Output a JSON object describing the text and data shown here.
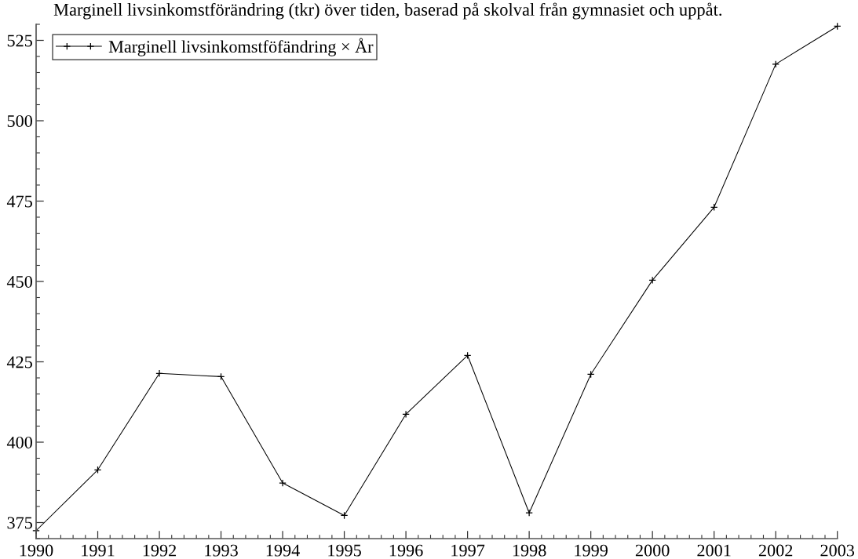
{
  "chart_data": {
    "type": "line",
    "title": "Marginell livsinkomstförändring (tkr) över tiden, baserad på skolval från gymnasiet och uppåt.",
    "x": [
      1990,
      1991,
      1992,
      1993,
      1994,
      1995,
      1996,
      1997,
      1998,
      1999,
      2000,
      2001,
      2002,
      2003
    ],
    "series": [
      {
        "name": "Marginell livsinkomstföfändring × År",
        "color": "#000000",
        "values": [
          372.5,
          391.4,
          421.4,
          420.4,
          387.3,
          377.2,
          408.7,
          427.0,
          378.0,
          421.1,
          450.4,
          473.1,
          517.6,
          529.4
        ]
      }
    ],
    "xlim": [
      1990,
      2003
    ],
    "xticks": [
      1990,
      {
        "value": 1990.2,
        "label": null
      },
      {
        "value": 1990.4,
        "label": null
      },
      {
        "value": 1990.6,
        "label": null
      },
      {
        "value": 1990.8,
        "label": null
      },
      1991,
      {
        "value": 1991.2,
        "label": null
      },
      {
        "value": 1991.4,
        "label": null
      },
      {
        "value": 1991.6,
        "label": null
      },
      {
        "value": 1991.8,
        "label": null
      },
      1992,
      {
        "value": 1992.2,
        "label": null
      },
      {
        "value": 1992.4,
        "label": null
      },
      {
        "value": 1992.6,
        "label": null
      },
      {
        "value": 1992.8,
        "label": null
      },
      1993,
      {
        "value": 1993.2,
        "label": null
      },
      {
        "value": 1993.4,
        "label": null
      },
      {
        "value": 1993.6,
        "label": null
      },
      {
        "value": 1993.8,
        "label": null
      },
      1994,
      {
        "value": 1994.2,
        "label": null
      },
      {
        "value": 1994.4,
        "label": null
      },
      {
        "value": 1994.6,
        "label": null
      },
      {
        "value": 1994.8,
        "label": null
      },
      1995,
      {
        "value": 1995.2,
        "label": null
      },
      {
        "value": 1995.4,
        "label": null
      },
      {
        "value": 1995.6,
        "label": null
      },
      {
        "value": 1995.8,
        "label": null
      },
      1996,
      {
        "value": 1996.2,
        "label": null
      },
      {
        "value": 1996.4,
        "label": null
      },
      {
        "value": 1996.6,
        "label": null
      },
      {
        "value": 1996.8,
        "label": null
      },
      1997,
      {
        "value": 1997.2,
        "label": null
      },
      {
        "value": 1997.4,
        "label": null
      },
      {
        "value": 1997.6,
        "label": null
      },
      {
        "value": 1997.8,
        "label": null
      },
      1998,
      {
        "value": 1998.2,
        "label": null
      },
      {
        "value": 1998.4,
        "label": null
      },
      {
        "value": 1998.6,
        "label": null
      },
      {
        "value": 1998.8,
        "label": null
      },
      1999,
      {
        "value": 1999.2,
        "label": null
      },
      {
        "value": 1999.4,
        "label": null
      },
      {
        "value": 1999.6,
        "label": null
      },
      {
        "value": 1999.8,
        "label": null
      },
      2000,
      {
        "value": 2000.2,
        "label": null
      },
      {
        "value": 2000.4,
        "label": null
      },
      {
        "value": 2000.6,
        "label": null
      },
      {
        "value": 2000.8,
        "label": null
      },
      2001,
      {
        "value": 2001.2,
        "label": null
      },
      {
        "value": 2001.4,
        "label": null
      },
      {
        "value": 2001.6,
        "label": null
      },
      {
        "value": 2001.8,
        "label": null
      },
      2002,
      {
        "value": 2002.2,
        "label": null
      },
      {
        "value": 2002.4,
        "label": null
      },
      {
        "value": 2002.6,
        "label": null
      },
      {
        "value": 2002.8,
        "label": null
      },
      2003
    ],
    "ylim": [
      370,
      530
    ],
    "yticks": [
      {
        "value": 370,
        "label": null
      },
      375,
      {
        "value": 380,
        "label": null
      },
      {
        "value": 385,
        "label": null
      },
      {
        "value": 390,
        "label": null
      },
      {
        "value": 395,
        "label": null
      },
      400,
      {
        "value": 405,
        "label": null
      },
      {
        "value": 410,
        "label": null
      },
      {
        "value": 415,
        "label": null
      },
      {
        "value": 420,
        "label": null
      },
      425,
      {
        "value": 430,
        "label": null
      },
      {
        "value": 435,
        "label": null
      },
      {
        "value": 440,
        "label": null
      },
      {
        "value": 445,
        "label": null
      },
      450,
      {
        "value": 455,
        "label": null
      },
      {
        "value": 460,
        "label": null
      },
      {
        "value": 465,
        "label": null
      },
      {
        "value": 470,
        "label": null
      },
      475,
      {
        "value": 480,
        "label": null
      },
      {
        "value": 485,
        "label": null
      },
      {
        "value": 490,
        "label": null
      },
      {
        "value": 495,
        "label": null
      },
      500,
      {
        "value": 505,
        "label": null
      },
      {
        "value": 510,
        "label": null
      },
      {
        "value": 515,
        "label": null
      },
      {
        "value": 520,
        "label": null
      },
      525,
      {
        "value": 530,
        "label": null
      }
    ],
    "marker": "cross",
    "line_style": "solid",
    "legend": "top left"
  }
}
